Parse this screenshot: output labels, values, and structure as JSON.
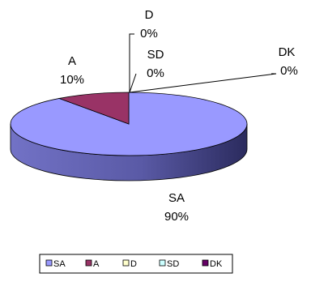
{
  "chart_data": {
    "type": "pie",
    "style": "3d",
    "categories": [
      "SA",
      "A",
      "D",
      "SD",
      "DK"
    ],
    "values": [
      90,
      10,
      0,
      0,
      0
    ],
    "value_labels": [
      "90%",
      "10%",
      "0%",
      "0%",
      "0%"
    ],
    "colors": [
      "#9999ff",
      "#993366",
      "#ffffcc",
      "#ccffff",
      "#660066"
    ],
    "legend_position": "bottom",
    "legend": [
      "SA",
      "A",
      "D",
      "SD",
      "DK"
    ]
  }
}
